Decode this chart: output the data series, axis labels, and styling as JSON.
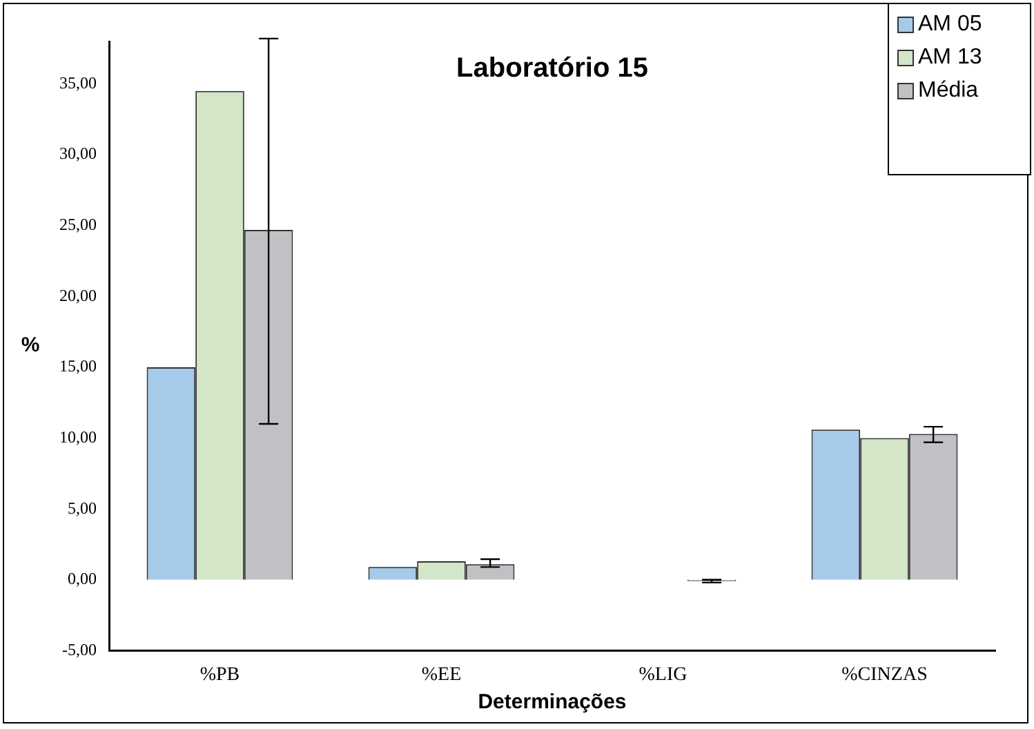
{
  "chart_data": {
    "type": "bar",
    "title": "Laboratório 15",
    "xlabel": "Determinações",
    "ylabel": "%",
    "categories": [
      "%PB",
      "%EE",
      "%LIG",
      "%CINZAS"
    ],
    "series": [
      {
        "name": "AM 05",
        "color": "#a6caea",
        "values": [
          15.0,
          0.9,
          null,
          10.6
        ]
      },
      {
        "name": "AM 13",
        "color": "#d3e6c8",
        "values": [
          34.5,
          1.3,
          null,
          10.0
        ]
      },
      {
        "name": "Média",
        "color": "#c0c1c4",
        "values": [
          24.7,
          1.1,
          -0.1,
          10.3
        ],
        "errors": [
          [
            11.0,
            38.2
          ],
          [
            0.9,
            1.45
          ],
          [
            -0.2,
            0.0
          ],
          [
            9.7,
            10.8
          ]
        ]
      }
    ],
    "ylim": [
      -5,
      38
    ],
    "yticks": [
      {
        "value": -5,
        "label": "-5,00"
      },
      {
        "value": 0,
        "label": "0,00"
      },
      {
        "value": 5,
        "label": "5,00"
      },
      {
        "value": 10,
        "label": "10,00"
      },
      {
        "value": 15,
        "label": "15,00"
      },
      {
        "value": 20,
        "label": "20,00"
      },
      {
        "value": 25,
        "label": "25,00"
      },
      {
        "value": 30,
        "label": "30,00"
      },
      {
        "value": 35,
        "label": "35,00"
      }
    ],
    "grid": false,
    "legend": "top right"
  }
}
